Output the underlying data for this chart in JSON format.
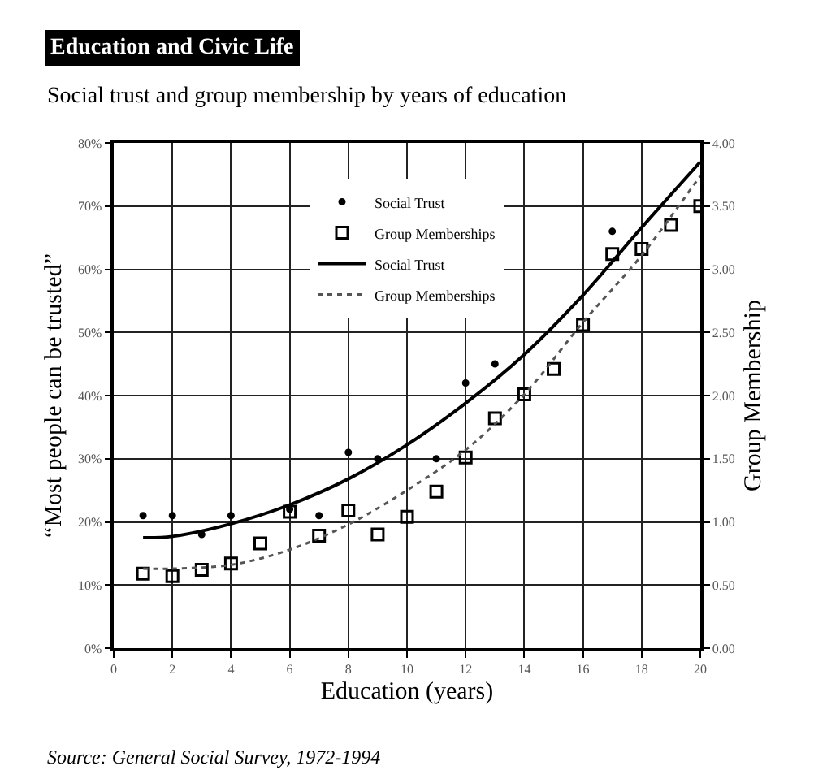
{
  "chart_data": {
    "type": "scatter",
    "title": "Education and Civic Life",
    "subtitle": "Social trust and group membership by years of education",
    "xlabel": "Education (years)",
    "ylabel": "“Most people can be trusted”",
    "y2label": "Group Membership",
    "xlim": [
      0,
      20
    ],
    "xticks": [
      0,
      2,
      4,
      6,
      8,
      10,
      12,
      14,
      16,
      18,
      20
    ],
    "ylim": [
      0,
      80
    ],
    "yticks": [
      {
        "value": 0,
        "label": "0%"
      },
      {
        "value": 10,
        "label": "10%"
      },
      {
        "value": 20,
        "label": "20%"
      },
      {
        "value": 30,
        "label": "30%"
      },
      {
        "value": 40,
        "label": "40%"
      },
      {
        "value": 50,
        "label": "50%"
      },
      {
        "value": 60,
        "label": "60%"
      },
      {
        "value": 70,
        "label": "70%"
      },
      {
        "value": 80,
        "label": "80%"
      }
    ],
    "y2lim": [
      0,
      4
    ],
    "y2ticks": [
      {
        "value": 0,
        "label": "0.00"
      },
      {
        "value": 0.5,
        "label": "0.50"
      },
      {
        "value": 1,
        "label": "1.00"
      },
      {
        "value": 1.5,
        "label": "1.50"
      },
      {
        "value": 2,
        "label": "2.00"
      },
      {
        "value": 2.5,
        "label": "2.50"
      },
      {
        "value": 3,
        "label": "3.00"
      },
      {
        "value": 3.5,
        "label": "3.50"
      },
      {
        "value": 4,
        "label": "4.00"
      }
    ],
    "grid": true,
    "legend": "top",
    "series": [
      {
        "name": "Social Trust",
        "marker": "circle",
        "color": "#000000",
        "x": [
          1,
          2,
          3,
          4,
          6,
          7,
          8,
          9,
          11,
          12,
          13,
          17
        ],
        "values": [
          21,
          21,
          18,
          21,
          22,
          21,
          31,
          30,
          30,
          42,
          45,
          66
        ]
      },
      {
        "name": "Group Memberships",
        "marker": "square",
        "color": "#000000",
        "axis": "y2",
        "x": [
          1,
          2,
          3,
          4,
          5,
          6,
          7,
          8,
          9,
          10,
          11,
          12,
          13,
          14,
          15,
          16,
          17,
          18,
          19,
          20
        ],
        "values": [
          0.59,
          0.57,
          0.62,
          0.67,
          0.83,
          1.08,
          0.89,
          1.09,
          0.9,
          1.04,
          1.24,
          1.51,
          1.82,
          2.01,
          2.21,
          2.56,
          3.12,
          3.16,
          3.35,
          3.5
        ]
      },
      {
        "name": "Social Trust",
        "type": "line",
        "line_style": "solid",
        "color": "#000000",
        "x": [
          1,
          2,
          4,
          6,
          8,
          10,
          12,
          14,
          16,
          18,
          20
        ],
        "values": [
          17.5,
          17.7,
          19.7,
          22.7,
          26.8,
          32.2,
          38.8,
          46.5,
          55.9,
          66.6,
          77
        ]
      },
      {
        "name": "Group Memberships",
        "type": "line",
        "line_style": "dotted",
        "color": "#555555",
        "axis": "y2",
        "x": [
          1,
          2,
          4,
          6,
          8,
          10,
          12,
          14,
          16,
          18,
          20
        ],
        "values": [
          0.63,
          0.63,
          0.66,
          0.78,
          0.98,
          1.25,
          1.57,
          2.01,
          2.58,
          3.11,
          3.74
        ]
      }
    ],
    "annotations": [
      "Source: General Social Survey, 1972-1994"
    ]
  }
}
